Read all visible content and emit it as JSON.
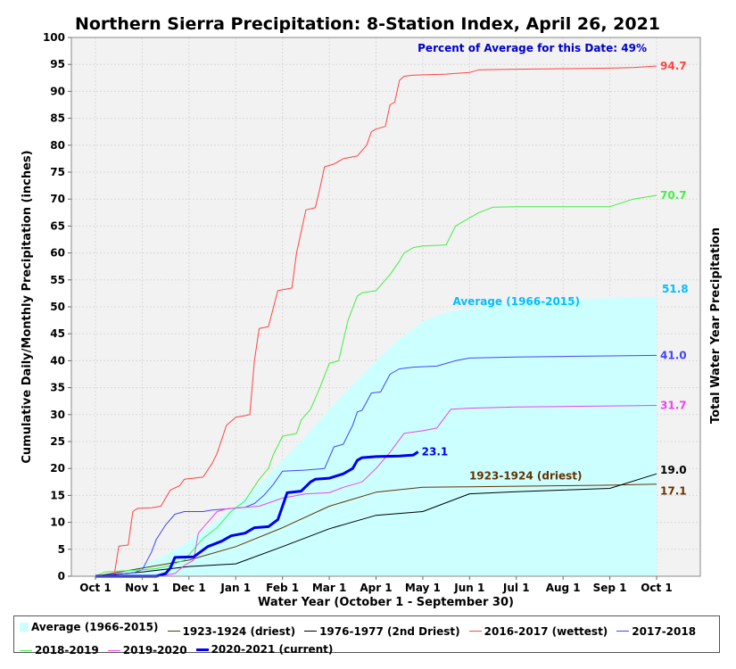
{
  "chart_data": {
    "type": "line",
    "title": "Northern Sierra Precipitation: 8-Station Index, April 26, 2021",
    "annotation": "Percent of Average for this Date: 49%",
    "xlabel": "Water Year (October 1 - September 30)",
    "ylabel": "Cumulative Daily/Monthly Precipitation (inches)",
    "ylabel_right": "Total Water Year Precipitation",
    "ylim": [
      0,
      100
    ],
    "yticks": [
      0,
      5,
      10,
      15,
      20,
      25,
      30,
      35,
      40,
      45,
      50,
      55,
      60,
      65,
      70,
      75,
      80,
      85,
      90,
      95,
      100
    ],
    "x_unit": "months since Oct 1",
    "xlim": [
      0,
      12
    ],
    "xticks": [
      {
        "x": 0,
        "label": "Oct 1"
      },
      {
        "x": 1,
        "label": "Nov 1"
      },
      {
        "x": 2,
        "label": "Dec 1"
      },
      {
        "x": 3,
        "label": "Jan 1"
      },
      {
        "x": 4,
        "label": "Feb 1"
      },
      {
        "x": 5,
        "label": "Mar 1"
      },
      {
        "x": 6,
        "label": "Apr 1"
      },
      {
        "x": 7,
        "label": "May 1"
      },
      {
        "x": 8,
        "label": "Jun 1"
      },
      {
        "x": 9,
        "label": "Jul 1"
      },
      {
        "x": 10,
        "label": "Aug 1"
      },
      {
        "x": 11,
        "label": "Sep 1"
      },
      {
        "x": 12,
        "label": "Oct 1"
      }
    ],
    "grid": true,
    "legend_position": "bottom",
    "series": [
      {
        "name": "Average (1966-2015)",
        "color": "#ccffff",
        "kind": "area",
        "end_label": "51.8",
        "end_label_color": "#00bfff",
        "inline_label": "Average (1966-2015)",
        "inline_label_color": "#00bfff",
        "points": [
          [
            0,
            0
          ],
          [
            0.5,
            0.6
          ],
          [
            1,
            2.0
          ],
          [
            1.5,
            4.0
          ],
          [
            2,
            6.5
          ],
          [
            2.5,
            9.7
          ],
          [
            3,
            13.2
          ],
          [
            3.5,
            17.0
          ],
          [
            4,
            21.5
          ],
          [
            4.5,
            26.0
          ],
          [
            5,
            31.0
          ],
          [
            5.5,
            35.5
          ],
          [
            6,
            40.0
          ],
          [
            6.5,
            44.0
          ],
          [
            7,
            47.3
          ],
          [
            7.5,
            49.0
          ],
          [
            8,
            49.8
          ],
          [
            9,
            50.8
          ],
          [
            10,
            51.3
          ],
          [
            11,
            51.6
          ],
          [
            12,
            51.8
          ]
        ]
      },
      {
        "name": "1923-1924 (driest)",
        "color": "#663300",
        "kind": "line",
        "width": 1,
        "end_label": "17.1",
        "end_label_color": "#663300",
        "inline_label": "1923-1924 (driest)",
        "inline_label_color": "#663300",
        "points": [
          [
            0,
            0
          ],
          [
            1,
            1.5
          ],
          [
            2,
            3.0
          ],
          [
            3,
            5.5
          ],
          [
            4,
            9.0
          ],
          [
            5,
            13.0
          ],
          [
            6,
            15.6
          ],
          [
            7,
            16.5
          ],
          [
            8,
            16.6
          ],
          [
            9,
            16.7
          ],
          [
            10,
            16.8
          ],
          [
            11,
            16.9
          ],
          [
            12,
            17.1
          ]
        ]
      },
      {
        "name": "1976-1977 (2nd Driest)",
        "color": "#000000",
        "kind": "line",
        "width": 1,
        "end_label": "19.0",
        "end_label_color": "#000000",
        "points": [
          [
            0,
            0
          ],
          [
            1,
            0.8
          ],
          [
            2,
            1.8
          ],
          [
            3,
            2.3
          ],
          [
            4,
            5.5
          ],
          [
            5,
            8.8
          ],
          [
            6,
            11.3
          ],
          [
            7,
            12.0
          ],
          [
            8,
            15.3
          ],
          [
            9,
            15.7
          ],
          [
            10,
            16.0
          ],
          [
            11,
            16.3
          ],
          [
            12,
            19.0
          ]
        ]
      },
      {
        "name": "2016-2017 (wettest)",
        "color": "#ff4444",
        "kind": "line",
        "width": 1,
        "end_label": "94.7",
        "end_label_color": "#ff4444",
        "points": [
          [
            0,
            0
          ],
          [
            0.4,
            0.2
          ],
          [
            0.5,
            5.6
          ],
          [
            0.7,
            5.8
          ],
          [
            0.8,
            12.0
          ],
          [
            0.9,
            12.6
          ],
          [
            1.2,
            12.7
          ],
          [
            1.4,
            13.0
          ],
          [
            1.6,
            16.0
          ],
          [
            1.8,
            16.8
          ],
          [
            1.9,
            18.0
          ],
          [
            2.3,
            18.4
          ],
          [
            2.5,
            21.0
          ],
          [
            2.6,
            22.8
          ],
          [
            2.8,
            28.0
          ],
          [
            3.0,
            29.5
          ],
          [
            3.2,
            29.8
          ],
          [
            3.3,
            30.0
          ],
          [
            3.4,
            40.0
          ],
          [
            3.5,
            46.0
          ],
          [
            3.7,
            46.3
          ],
          [
            3.9,
            53.0
          ],
          [
            4.2,
            53.5
          ],
          [
            4.3,
            60.0
          ],
          [
            4.5,
            68.0
          ],
          [
            4.7,
            68.4
          ],
          [
            4.8,
            72.0
          ],
          [
            4.9,
            76.0
          ],
          [
            5.1,
            76.5
          ],
          [
            5.3,
            77.5
          ],
          [
            5.6,
            78.0
          ],
          [
            5.8,
            80.0
          ],
          [
            5.9,
            82.5
          ],
          [
            6.0,
            83.0
          ],
          [
            6.2,
            83.5
          ],
          [
            6.3,
            87.5
          ],
          [
            6.4,
            88.0
          ],
          [
            6.5,
            92.0
          ],
          [
            6.6,
            92.8
          ],
          [
            6.8,
            93.0
          ],
          [
            7.5,
            93.2
          ],
          [
            8.0,
            93.5
          ],
          [
            8.2,
            94.0
          ],
          [
            9,
            94.1
          ],
          [
            10,
            94.2
          ],
          [
            11,
            94.3
          ],
          [
            11.5,
            94.4
          ],
          [
            12,
            94.7
          ]
        ]
      },
      {
        "name": "2017-2018",
        "color": "#4444ff",
        "kind": "line",
        "width": 1,
        "end_label": "41.0",
        "end_label_color": "#4444ff",
        "points": [
          [
            0,
            0
          ],
          [
            0.4,
            0.4
          ],
          [
            0.8,
            0.6
          ],
          [
            1.0,
            1.2
          ],
          [
            1.2,
            4.5
          ],
          [
            1.3,
            6.8
          ],
          [
            1.5,
            9.5
          ],
          [
            1.7,
            11.5
          ],
          [
            1.9,
            12.0
          ],
          [
            2.3,
            12.0
          ],
          [
            2.5,
            12.3
          ],
          [
            2.8,
            12.5
          ],
          [
            3.2,
            12.8
          ],
          [
            3.4,
            13.5
          ],
          [
            3.6,
            15.0
          ],
          [
            3.8,
            17.0
          ],
          [
            4.0,
            19.5
          ],
          [
            4.5,
            19.7
          ],
          [
            4.9,
            20.0
          ],
          [
            5.1,
            24.0
          ],
          [
            5.3,
            24.5
          ],
          [
            5.5,
            28.0
          ],
          [
            5.6,
            30.5
          ],
          [
            5.7,
            30.8
          ],
          [
            5.9,
            34.0
          ],
          [
            6.1,
            34.2
          ],
          [
            6.3,
            37.5
          ],
          [
            6.5,
            38.5
          ],
          [
            6.8,
            38.8
          ],
          [
            7.3,
            39.0
          ],
          [
            7.7,
            40.0
          ],
          [
            8.0,
            40.5
          ],
          [
            9,
            40.7
          ],
          [
            10,
            40.8
          ],
          [
            11,
            40.9
          ],
          [
            12,
            41.0
          ]
        ]
      },
      {
        "name": "2018-2019",
        "color": "#44ee44",
        "kind": "line",
        "width": 1,
        "end_label": "70.7",
        "end_label_color": "#44ee44",
        "points": [
          [
            0,
            0
          ],
          [
            0.2,
            0.8
          ],
          [
            0.6,
            1.0
          ],
          [
            1.0,
            1.2
          ],
          [
            1.3,
            1.4
          ],
          [
            1.6,
            2.0
          ],
          [
            1.9,
            3.0
          ],
          [
            2.3,
            7.0
          ],
          [
            2.6,
            9.0
          ],
          [
            2.9,
            12.0
          ],
          [
            3.2,
            14.0
          ],
          [
            3.5,
            18.0
          ],
          [
            3.7,
            20.0
          ],
          [
            3.8,
            22.5
          ],
          [
            4.0,
            26.0
          ],
          [
            4.3,
            26.5
          ],
          [
            4.4,
            29.0
          ],
          [
            4.6,
            31.0
          ],
          [
            4.8,
            35.0
          ],
          [
            5.0,
            39.5
          ],
          [
            5.2,
            40.0
          ],
          [
            5.4,
            47.5
          ],
          [
            5.6,
            52.0
          ],
          [
            5.7,
            52.6
          ],
          [
            6.0,
            53.0
          ],
          [
            6.3,
            56.0
          ],
          [
            6.5,
            58.5
          ],
          [
            6.6,
            60.0
          ],
          [
            6.8,
            61.0
          ],
          [
            7.0,
            61.3
          ],
          [
            7.3,
            61.4
          ],
          [
            7.5,
            61.5
          ],
          [
            7.7,
            65.0
          ],
          [
            8.0,
            66.5
          ],
          [
            8.2,
            67.5
          ],
          [
            8.5,
            68.5
          ],
          [
            9,
            68.6
          ],
          [
            10,
            68.6
          ],
          [
            11,
            68.6
          ],
          [
            11.5,
            70.0
          ],
          [
            12,
            70.7
          ]
        ]
      },
      {
        "name": "2019-2020",
        "color": "#ee44ee",
        "kind": "line",
        "width": 1,
        "end_label": "31.7",
        "end_label_color": "#ee44ee",
        "points": [
          [
            0,
            0
          ],
          [
            0.8,
            0.1
          ],
          [
            1.5,
            0.2
          ],
          [
            1.7,
            0.5
          ],
          [
            1.9,
            2.0
          ],
          [
            2.1,
            3.0
          ],
          [
            2.2,
            8.0
          ],
          [
            2.4,
            10.0
          ],
          [
            2.6,
            12.0
          ],
          [
            2.8,
            12.5
          ],
          [
            3.2,
            12.8
          ],
          [
            3.5,
            13.0
          ],
          [
            4.0,
            14.5
          ],
          [
            4.5,
            15.3
          ],
          [
            5.0,
            15.5
          ],
          [
            5.3,
            16.5
          ],
          [
            5.7,
            17.5
          ],
          [
            6.0,
            20.0
          ],
          [
            6.3,
            23.0
          ],
          [
            6.6,
            26.5
          ],
          [
            7.0,
            27.0
          ],
          [
            7.3,
            27.5
          ],
          [
            7.6,
            31.0
          ],
          [
            8,
            31.2
          ],
          [
            9,
            31.4
          ],
          [
            10,
            31.5
          ],
          [
            11,
            31.6
          ],
          [
            12,
            31.7
          ]
        ]
      },
      {
        "name": "2020-2021 (current)",
        "color": "#0000ee",
        "kind": "line",
        "width": 3,
        "end_label": "23.1",
        "end_label_color": "#0000ee",
        "points": [
          [
            0,
            0
          ],
          [
            1.3,
            0
          ],
          [
            1.5,
            0.5
          ],
          [
            1.6,
            1.5
          ],
          [
            1.7,
            3.5
          ],
          [
            2.1,
            3.6
          ],
          [
            2.4,
            5.5
          ],
          [
            2.7,
            6.5
          ],
          [
            2.9,
            7.5
          ],
          [
            3.2,
            8.0
          ],
          [
            3.4,
            9.0
          ],
          [
            3.7,
            9.2
          ],
          [
            3.9,
            10.5
          ],
          [
            4.0,
            13.0
          ],
          [
            4.1,
            15.5
          ],
          [
            4.4,
            15.8
          ],
          [
            4.6,
            17.5
          ],
          [
            4.7,
            18.0
          ],
          [
            5.0,
            18.2
          ],
          [
            5.3,
            19.0
          ],
          [
            5.5,
            20.0
          ],
          [
            5.6,
            21.5
          ],
          [
            5.7,
            22.0
          ],
          [
            6.0,
            22.2
          ],
          [
            6.5,
            22.3
          ],
          [
            6.8,
            22.5
          ],
          [
            6.9,
            23.1
          ]
        ]
      }
    ]
  },
  "legend": {
    "items": [
      {
        "label": "Average (1966-2015)",
        "color": "#ccffff",
        "kind": "area"
      },
      {
        "label": "1923-1924 (driest)",
        "color": "#663300",
        "kind": "line"
      },
      {
        "label": "1976-1977 (2nd Driest)",
        "color": "#000000",
        "kind": "line"
      },
      {
        "label": "2016-2017 (wettest)",
        "color": "#ff4444",
        "kind": "line"
      },
      {
        "label": "2017-2018",
        "color": "#4444ff",
        "kind": "line"
      },
      {
        "label": "2018-2019",
        "color": "#44ee44",
        "kind": "line"
      },
      {
        "label": "2019-2020",
        "color": "#ee44ee",
        "kind": "line"
      },
      {
        "label": "2020-2021 (current)",
        "color": "#0000ee",
        "kind": "line"
      }
    ]
  },
  "colors": {
    "plot_bg": "#f2f2f2",
    "grid": "#d9d9d9",
    "annotation": "#0000cc"
  }
}
